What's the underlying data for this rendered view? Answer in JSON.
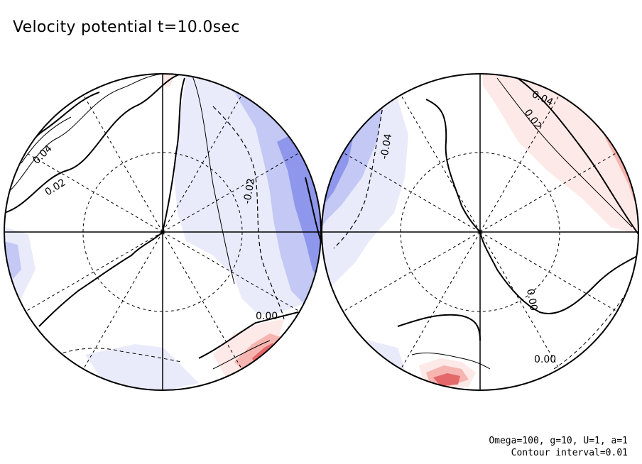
{
  "title": "Velocity potential t=10.0sec",
  "footer": {
    "params": "Omega=100, g=10, U=1, a=1",
    "contour_interval": "Contour interval=0.01"
  },
  "colors": {
    "negative_light": "#e9ebfb",
    "negative_mid": "#c3c8f4",
    "negative_dark": "#8e97ec",
    "positive_light": "#fde9e7",
    "positive_mid": "#f6b5b0",
    "positive_dark": "#e4676a"
  },
  "hemispheres": [
    {
      "name": "left",
      "contour_labels": [
        "0.04",
        "0.02",
        "-0.02",
        "0.00"
      ]
    },
    {
      "name": "right",
      "contour_labels": [
        "-0.04",
        "0.04",
        "0.02",
        "0.00",
        "0.00"
      ]
    }
  ]
}
